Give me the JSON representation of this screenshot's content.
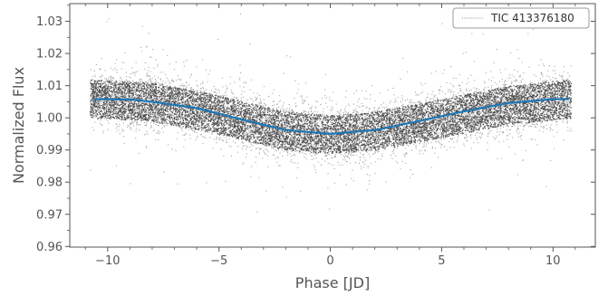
{
  "chart_data": {
    "type": "scatter",
    "title": "",
    "xlabel": "Phase [JD]",
    "ylabel": "Normalized Flux",
    "xlim": [
      -11.7,
      11.9
    ],
    "ylim": [
      0.9598,
      1.0355
    ],
    "x_ticks": [
      -10,
      -5,
      0,
      5,
      10
    ],
    "y_ticks": [
      0.96,
      0.97,
      0.98,
      0.99,
      1.0,
      1.01,
      1.02,
      1.03
    ],
    "x_tick_labels": [
      "−10",
      "−5",
      "0",
      "5",
      "10"
    ],
    "y_tick_labels": [
      "0.96",
      "0.97",
      "0.98",
      "0.99",
      "1.00",
      "1.01",
      "1.02",
      "1.03"
    ],
    "grid": false,
    "legend_position": "top-right",
    "series": [
      {
        "name": "TIC 413376180",
        "kind": "scatter",
        "color": "#000000",
        "x_range": [
          -10.8,
          10.8
        ],
        "description_values": {
          "envelope_center": [
            {
              "x": -10.6,
              "y": 1.006
            },
            {
              "x": -8,
              "y": 1.005
            },
            {
              "x": -5,
              "y": 1.001
            },
            {
              "x": -2,
              "y": 0.996
            },
            {
              "x": 0,
              "y": 0.995
            },
            {
              "x": 2,
              "y": 0.996
            },
            {
              "x": 5,
              "y": 1.0
            },
            {
              "x": 8,
              "y": 1.004
            },
            {
              "x": 10.7,
              "y": 1.006
            }
          ],
          "scatter_half_width": 0.008
        }
      },
      {
        "kind": "line",
        "color": "#1f77b4",
        "points": [
          {
            "x": -10.6,
            "y": 1.0058
          },
          {
            "x": -9,
            "y": 1.0057
          },
          {
            "x": -8,
            "y": 1.005
          },
          {
            "x": -6,
            "y": 1.003
          },
          {
            "x": -4,
            "y": 0.9995
          },
          {
            "x": -2,
            "y": 0.9962
          },
          {
            "x": 0,
            "y": 0.995
          },
          {
            "x": 2,
            "y": 0.9962
          },
          {
            "x": 4,
            "y": 0.999
          },
          {
            "x": 6,
            "y": 1.002
          },
          {
            "x": 8,
            "y": 1.0046
          },
          {
            "x": 10,
            "y": 1.0058
          },
          {
            "x": 10.7,
            "y": 1.0058
          }
        ]
      }
    ]
  }
}
